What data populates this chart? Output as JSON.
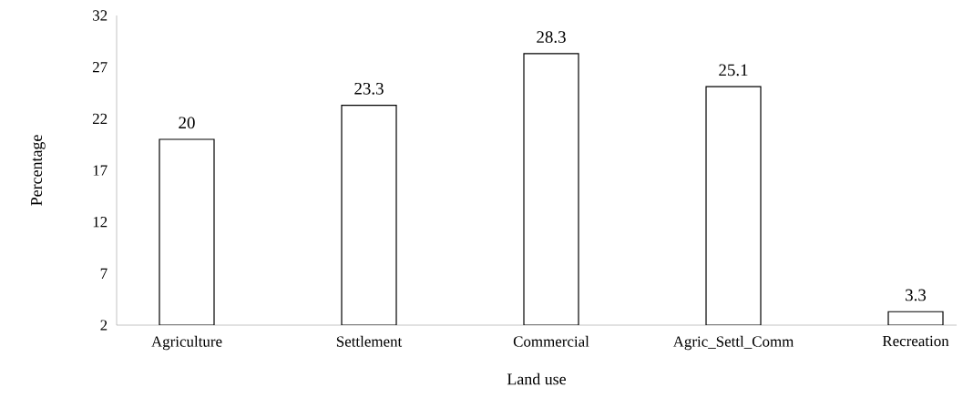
{
  "chart_data": {
    "type": "bar",
    "xlabel": "Land use",
    "ylabel": "Percentage",
    "categories": [
      "Agriculture",
      "Settlement",
      "Commercial",
      "Agric_Settl_Comm",
      "Recreation"
    ],
    "values": [
      20,
      23.3,
      28.3,
      25.1,
      3.3
    ],
    "color": "#ffffff",
    "ylim": [
      2,
      32
    ],
    "yticks": [
      2,
      7,
      12,
      17,
      22,
      27,
      32
    ],
    "data_labels": true,
    "grid": false
  }
}
